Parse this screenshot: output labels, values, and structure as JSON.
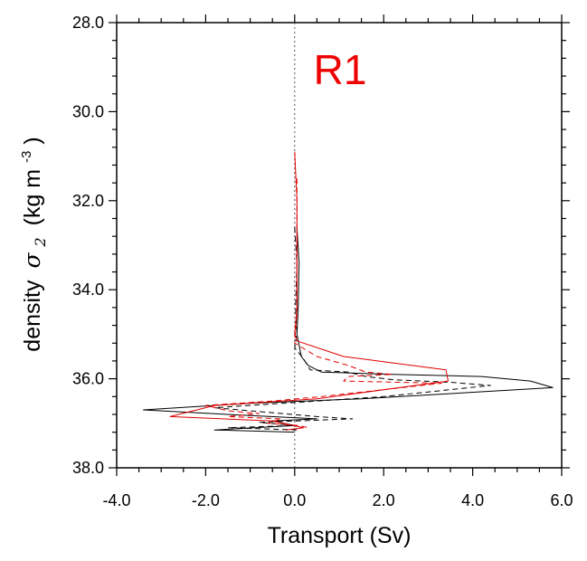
{
  "chart_data": {
    "type": "line",
    "title": "",
    "panel_label": "R1",
    "xlabel": "Transport (Sv)",
    "ylabel": {
      "prefix": "density",
      "symbol": "σ",
      "subscript": "2",
      "unit_open": "(kg m",
      "unit_exp": "-3",
      "unit_close": ")"
    },
    "xlim": [
      -4.0,
      6.0
    ],
    "ylim": [
      38.0,
      28.0
    ],
    "y_inverted": true,
    "x_ticks": [
      "-4.0",
      "-2.0",
      "0.0",
      "2.0",
      "4.0",
      "6.0"
    ],
    "x_tick_values": [
      -4,
      -2,
      0,
      2,
      4,
      6
    ],
    "y_ticks": [
      "28.0",
      "30.0",
      "32.0",
      "34.0",
      "36.0",
      "38.0"
    ],
    "y_tick_values": [
      28,
      30,
      32,
      34,
      36,
      38
    ],
    "x_minor_step": 0.5,
    "y_minor_step": 0.4,
    "grid": false,
    "zero_line": {
      "x": 0,
      "color": "#555555",
      "style": "dotted"
    },
    "series": [
      {
        "color": "#000000",
        "style": "solid",
        "points": [
          [
            0.05,
            32.6
          ],
          [
            0.1,
            33.4
          ],
          [
            0.08,
            34.4
          ],
          [
            0.05,
            35.0
          ],
          [
            0.15,
            35.5
          ],
          [
            0.3,
            35.7
          ],
          [
            0.6,
            35.85
          ],
          [
            2.2,
            35.9
          ],
          [
            4.2,
            35.95
          ],
          [
            5.3,
            36.05
          ],
          [
            5.8,
            36.2
          ],
          [
            1.5,
            36.45
          ],
          [
            -1.0,
            36.55
          ],
          [
            -3.4,
            36.7
          ],
          [
            -1.5,
            36.8
          ],
          [
            0.5,
            36.9
          ],
          [
            -0.5,
            36.95
          ],
          [
            0.0,
            37.05
          ],
          [
            -1.8,
            37.15
          ],
          [
            0.0,
            37.2
          ]
        ]
      },
      {
        "color": "#000000",
        "style": "dashed",
        "points": [
          [
            0.0,
            32.6
          ],
          [
            0.05,
            33.4
          ],
          [
            0.02,
            34.4
          ],
          [
            0.05,
            35.0
          ],
          [
            0.0,
            35.3
          ],
          [
            0.2,
            35.55
          ],
          [
            0.35,
            35.8
          ],
          [
            1.2,
            35.85
          ],
          [
            1.6,
            35.95
          ],
          [
            2.2,
            36.02
          ],
          [
            3.5,
            36.08
          ],
          [
            4.4,
            36.15
          ],
          [
            2.0,
            36.4
          ],
          [
            0.5,
            36.5
          ],
          [
            -1.8,
            36.65
          ],
          [
            0.5,
            36.85
          ],
          [
            1.3,
            36.9
          ],
          [
            -0.8,
            36.98
          ],
          [
            0.0,
            37.05
          ],
          [
            -1.5,
            37.1
          ],
          [
            0.1,
            37.15
          ]
        ]
      },
      {
        "color": "#e00000",
        "style": "solid",
        "points": [
          [
            0.0,
            30.9
          ],
          [
            0.05,
            32.0
          ],
          [
            0.05,
            33.4
          ],
          [
            0.05,
            34.4
          ],
          [
            0.0,
            35.0
          ],
          [
            0.05,
            35.15
          ],
          [
            1.1,
            35.5
          ],
          [
            3.4,
            35.8
          ],
          [
            3.45,
            36.05
          ],
          [
            0.5,
            36.45
          ],
          [
            -1.8,
            36.6
          ],
          [
            -2.8,
            36.85
          ],
          [
            -0.5,
            36.95
          ],
          [
            0.2,
            37.1
          ],
          [
            -0.2,
            37.15
          ]
        ]
      },
      {
        "color": "#e00000",
        "style": "dashed",
        "points": [
          [
            0.05,
            31.5
          ],
          [
            0.05,
            34.5
          ],
          [
            0.0,
            35.2
          ],
          [
            0.5,
            35.5
          ],
          [
            1.2,
            35.7
          ],
          [
            1.6,
            35.85
          ],
          [
            2.2,
            35.9
          ],
          [
            1.2,
            35.95
          ],
          [
            1.1,
            36.05
          ],
          [
            3.3,
            36.1
          ],
          [
            0.6,
            36.4
          ],
          [
            -0.5,
            36.5
          ],
          [
            -2.0,
            36.6
          ],
          [
            -1.5,
            36.72
          ],
          [
            -0.8,
            36.78
          ],
          [
            -1.5,
            36.85
          ],
          [
            -0.3,
            36.9
          ],
          [
            -0.6,
            37.0
          ],
          [
            0.1,
            37.05
          ],
          [
            0.3,
            37.1
          ]
        ]
      }
    ]
  },
  "colors": {
    "panel_label": "#ee0000",
    "axis": "#000000",
    "background": "#ffffff"
  }
}
